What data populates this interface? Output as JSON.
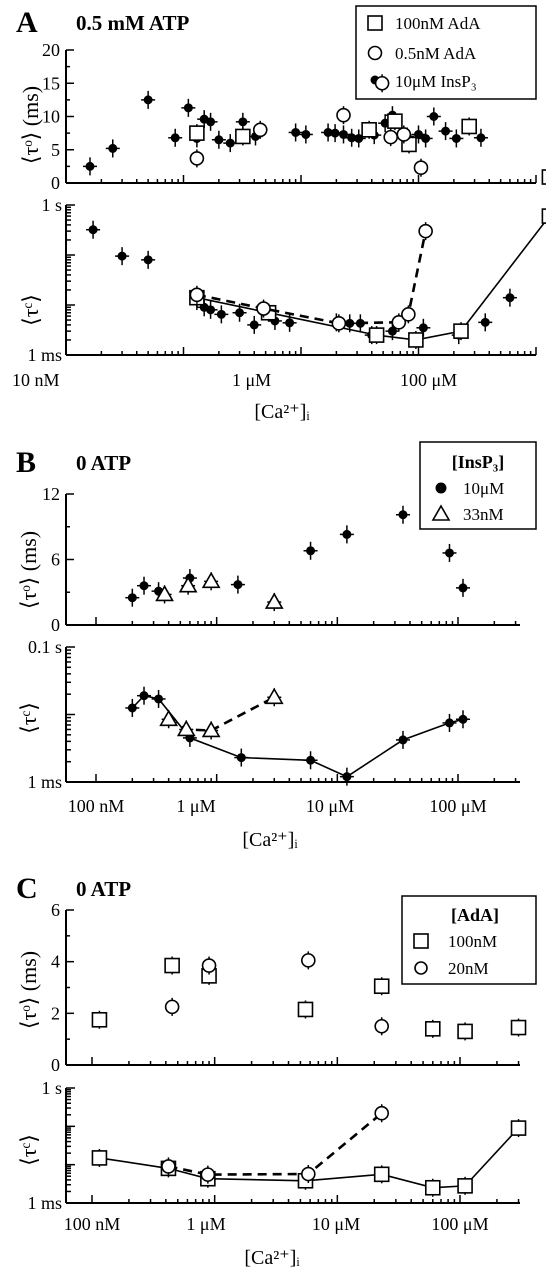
{
  "panels": [
    {
      "letter": "A",
      "title": "0.5 mM ATP",
      "legend": {
        "header": "",
        "entries": [
          {
            "marker": "square",
            "label": "100nM AdA"
          },
          {
            "marker": "circle",
            "label": "0.5nM AdA"
          },
          {
            "marker": "dot",
            "label": "10μM InsP₃"
          }
        ]
      },
      "x_tick_labels": [
        "10 nM",
        "1 μM",
        "100 μM"
      ],
      "x_axis_label": "[Ca²⁺]ᵢ"
    },
    {
      "letter": "B",
      "title": "0 ATP",
      "legend": {
        "header": "[InsP₃]",
        "entries": [
          {
            "marker": "dot",
            "label": "10μM"
          },
          {
            "marker": "triangle",
            "label": "33nM"
          }
        ]
      },
      "x_tick_labels": [
        "100 nM",
        "1 μM",
        "10 μM",
        "100 μM"
      ],
      "x_axis_label": "[Ca²⁺]ᵢ"
    },
    {
      "letter": "C",
      "title": "0 ATP",
      "legend": {
        "header": "[AdA]",
        "entries": [
          {
            "marker": "square",
            "label": "100nM"
          },
          {
            "marker": "circle",
            "label": "20nM"
          }
        ]
      },
      "x_tick_labels": [
        "100 nM",
        "1 μM",
        "10 μM",
        "100 μM"
      ],
      "x_axis_label": "[Ca²⁺]ᵢ"
    }
  ],
  "chart_data": [
    {
      "panel": "A-top",
      "type": "scatter",
      "ylabel": "⟨τᵒ⟩ (ms)",
      "xscale": "log",
      "xlim": [
        10,
        300000
      ],
      "ylim": [
        0,
        20
      ],
      "yticks": [
        0,
        5,
        10,
        15,
        20
      ],
      "series": [
        {
          "name": "10μM InsP₃",
          "marker": "dot",
          "x": [
            16,
            25,
            50,
            85,
            110,
            130,
            150,
            170,
            200,
            250,
            320,
            410,
            900,
            1100,
            1700,
            1950,
            2300,
            2700,
            3100,
            4200,
            5200,
            6000,
            8000,
            10000,
            11500,
            13500,
            17000,
            21000,
            34000
          ],
          "y": [
            2.5,
            5.2,
            12.5,
            6.8,
            11.3,
            6.7,
            9.6,
            9.2,
            6.5,
            6.0,
            9.2,
            7.0,
            7.6,
            7.3,
            7.6,
            7.5,
            7.3,
            6.8,
            6.7,
            7.2,
            9.0,
            10.2,
            7.0,
            7.3,
            6.7,
            10.0,
            7.8,
            6.7,
            6.8
          ]
        },
        {
          "name": "100nM AdA",
          "marker": "square",
          "x": [
            130,
            320,
            3800,
            6300,
            8300,
            27000,
            130000
          ],
          "y": [
            7.5,
            7.0,
            8.0,
            9.3,
            5.8,
            8.5,
            0.9
          ]
        },
        {
          "name": "0.5nM AdA",
          "marker": "circle",
          "x": [
            130,
            450,
            2300,
            4900,
            5800,
            7500,
            10500
          ],
          "y": [
            3.7,
            8.0,
            10.2,
            15.0,
            6.9,
            7.3,
            2.3
          ]
        }
      ]
    },
    {
      "panel": "A-bottom",
      "type": "line",
      "ylabel": "⟨τᶜ⟩",
      "xscale": "log",
      "xlim": [
        10,
        300000
      ],
      "yscale": "log",
      "ylim": [
        1,
        1000
      ],
      "ytick_labels": [
        "1 ms",
        "1 s"
      ],
      "series": [
        {
          "name": "10μM InsP₃",
          "marker": "dot",
          "connected": false,
          "x": [
            17,
            30,
            50,
            130,
            150,
            170,
            210,
            300,
            400,
            600,
            800,
            2000,
            2600,
            3200,
            4000,
            6000,
            11000,
            22000,
            37000,
            60000
          ],
          "y": [
            320,
            95,
            80,
            12,
            9,
            8,
            6.5,
            7,
            4,
            4.8,
            4.4,
            4.5,
            4.3,
            4.3,
            2.5,
            3,
            3.5,
            2.5,
            4.5,
            14
          ]
        },
        {
          "name": "100nM AdA",
          "marker": "square",
          "connected": true,
          "line": "solid",
          "x": [
            130,
            530,
            4400,
            9500,
            23000,
            130000
          ],
          "y": [
            14,
            7,
            2.5,
            2,
            3,
            600
          ]
        },
        {
          "name": "0.5nM AdA",
          "marker": "circle",
          "connected": true,
          "line": "dashed",
          "x": [
            130,
            480,
            2100,
            6800,
            8200,
            11500
          ],
          "y": [
            16,
            8.5,
            4.3,
            4.5,
            6.5,
            300
          ]
        }
      ]
    },
    {
      "panel": "B-top",
      "type": "scatter",
      "ylabel": "⟨τᵒ⟩ (ms)",
      "xscale": "log",
      "xlim": [
        100,
        500000
      ],
      "ylim": [
        0,
        12
      ],
      "yticks": [
        0,
        6,
        12
      ],
      "series": [
        {
          "name": "10μM",
          "marker": "dot",
          "x": [
            200,
            250,
            330,
            600,
            1500,
            6000,
            12000,
            35000,
            85000,
            110000
          ],
          "y": [
            2.5,
            3.6,
            3.1,
            4.3,
            3.7,
            6.8,
            8.3,
            10.1,
            6.6,
            3.4
          ]
        },
        {
          "name": "33nM",
          "marker": "triangle",
          "x": [
            370,
            580,
            900,
            3000
          ],
          "y": [
            2.8,
            3.6,
            4.0,
            2.1
          ]
        }
      ]
    },
    {
      "panel": "B-bottom",
      "type": "line",
      "ylabel": "⟨τᶜ⟩",
      "xscale": "log",
      "xlim": [
        100,
        500000
      ],
      "yscale": "log",
      "ylim": [
        1,
        100
      ],
      "ytick_labels": [
        "1 ms",
        "0.1 s"
      ],
      "series": [
        {
          "name": "10μM",
          "marker": "dot",
          "connected": true,
          "line": "solid",
          "x": [
            200,
            250,
            330,
            600,
            1600,
            6000,
            12000,
            35000,
            85000,
            110000
          ],
          "y": [
            12.5,
            19,
            17,
            4.5,
            2.3,
            2.1,
            1.2,
            4.2,
            7.5,
            8.5
          ]
        },
        {
          "name": "33nM",
          "marker": "triangle",
          "connected": true,
          "line": "dashed",
          "x": [
            400,
            560,
            900,
            3000
          ],
          "y": [
            8.5,
            6.0,
            5.8,
            18
          ]
        }
      ]
    },
    {
      "panel": "C-top",
      "type": "scatter",
      "ylabel": "⟨τᵒ⟩ (ms)",
      "xscale": "log",
      "xlim": [
        100,
        500000
      ],
      "ylim": [
        0,
        6
      ],
      "yticks": [
        0,
        2,
        4,
        6
      ],
      "series": [
        {
          "name": "100nM",
          "marker": "square",
          "x": [
            115,
            450,
            900,
            5500,
            23000,
            60000,
            110000,
            300000
          ],
          "y": [
            1.75,
            3.85,
            3.45,
            2.15,
            3.05,
            1.4,
            1.3,
            1.45
          ]
        },
        {
          "name": "20nM",
          "marker": "circle",
          "x": [
            450,
            900,
            5800,
            23000
          ],
          "y": [
            2.25,
            3.85,
            4.05,
            1.5
          ]
        }
      ]
    },
    {
      "panel": "C-bottom",
      "type": "line",
      "ylabel": "⟨τᶜ⟩",
      "xscale": "log",
      "xlim": [
        100,
        500000
      ],
      "yscale": "log",
      "ylim": [
        1,
        1000
      ],
      "ytick_labels": [
        "1 ms",
        "1 s"
      ],
      "series": [
        {
          "name": "100nM",
          "marker": "square",
          "connected": true,
          "line": "solid",
          "x": [
            115,
            420,
            880,
            5500,
            23000,
            60000,
            110000,
            300000
          ],
          "y": [
            15,
            8,
            4.3,
            3.8,
            5.6,
            2.5,
            2.8,
            90
          ]
        },
        {
          "name": "20nM",
          "marker": "circle",
          "connected": true,
          "line": "dashed",
          "x": [
            420,
            880,
            5800,
            23000
          ],
          "y": [
            9,
            5.5,
            5.7,
            220
          ]
        }
      ]
    }
  ]
}
